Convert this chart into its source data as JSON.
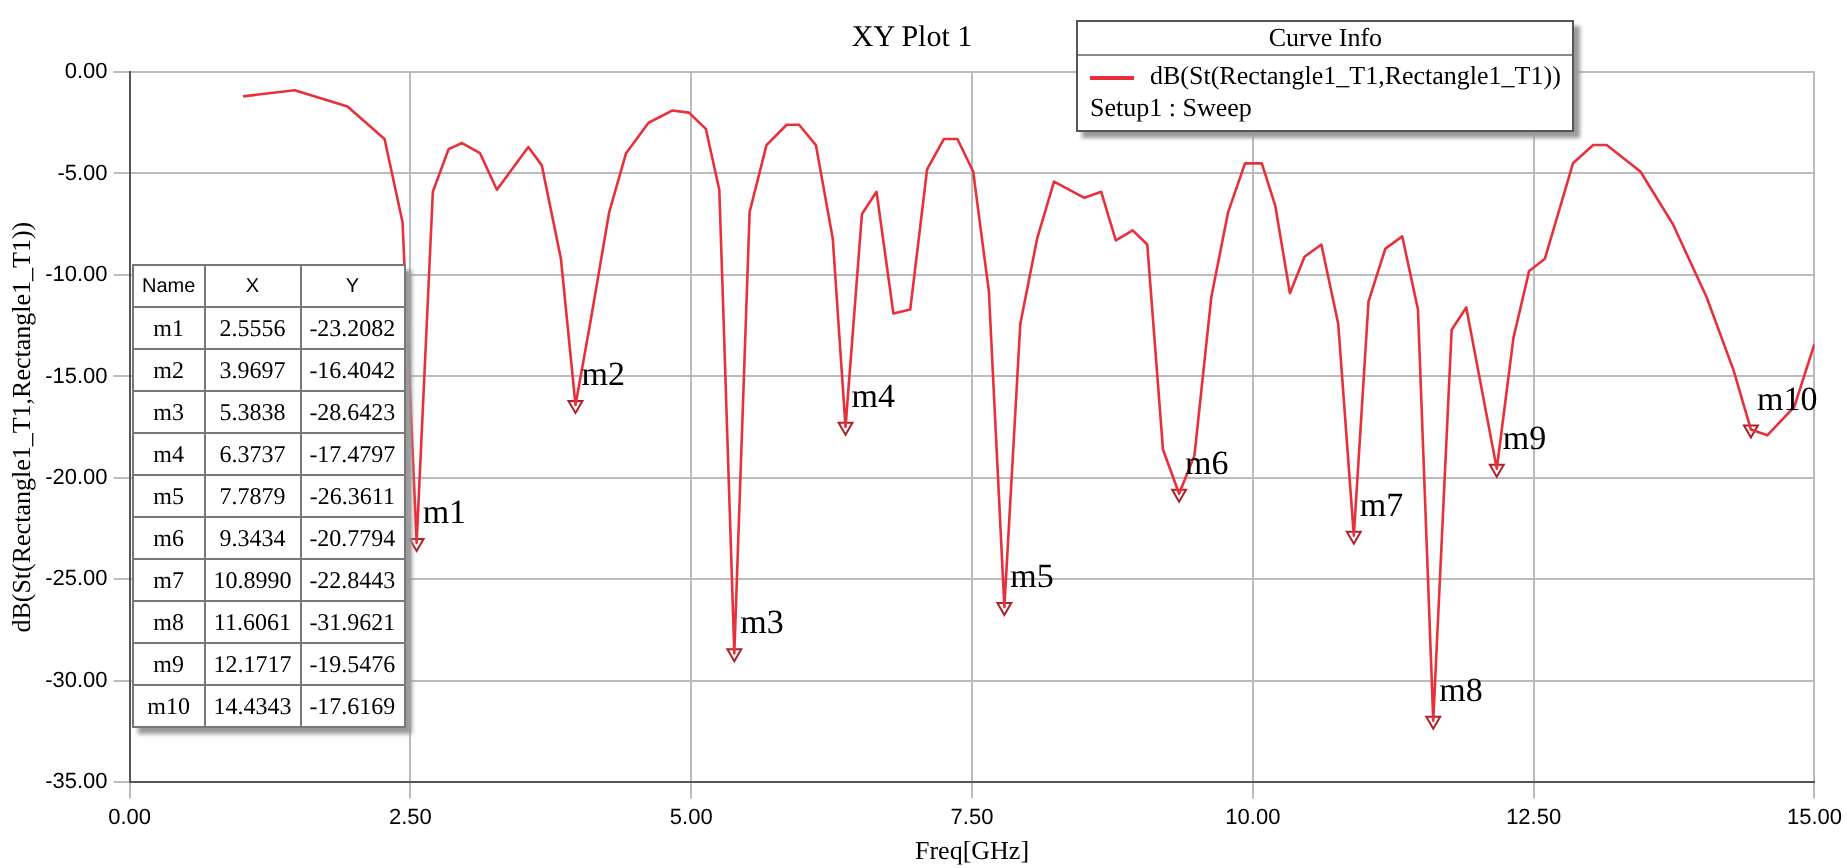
{
  "chart_data": {
    "type": "line",
    "title": "XY Plot 1",
    "xlabel": "Freq[GHz]",
    "ylabel": "dB(St(Rectangle1_T1,Rectangle1_T1))",
    "legend_title": "Curve Info",
    "annotations": [
      "Setup1 : Sweep",
      "Name",
      "X",
      "Y",
      "m1",
      "2.5556",
      "-23.2082",
      "m2",
      "3.9697",
      "-16.4042",
      "m3",
      "5.3838",
      "-28.6423",
      "m4",
      "6.3737",
      "-17.4797",
      "m5",
      "7.7879",
      "-26.3611",
      "m6",
      "9.3434",
      "-20.7794",
      "m7",
      "10.8990",
      "-22.8443",
      "m8",
      "11.6061",
      "-31.9621",
      "m9",
      "12.1717",
      "-19.5476",
      "m10",
      "14.4343",
      "-17.6169"
    ],
    "xlim": [
      0,
      15
    ],
    "xticks": [
      {
        "value": 0,
        "label": "0.00"
      },
      {
        "value": 2.5,
        "label": "2.50"
      },
      {
        "value": 5,
        "label": "5.00"
      },
      {
        "value": 7.5,
        "label": "7.50"
      },
      {
        "value": 10,
        "label": "10.00"
      },
      {
        "value": 12.5,
        "label": "12.50"
      },
      {
        "value": 15,
        "label": "15.00"
      }
    ],
    "ylim": [
      -35,
      0
    ],
    "yticks": [
      {
        "value": -35,
        "label": "-35.00"
      },
      {
        "value": -30,
        "label": "-30.00"
      },
      {
        "value": -25,
        "label": "-25.00"
      },
      {
        "value": -20,
        "label": "-20.00"
      },
      {
        "value": -15,
        "label": "-15.00"
      },
      {
        "value": -10,
        "label": "-10.00"
      },
      {
        "value": -5,
        "label": "-5.00"
      },
      {
        "value": 0,
        "label": "0.00"
      }
    ],
    "grid": true,
    "legend": "top right",
    "series": [
      {
        "name": "dB(St(Rectangle1_T1,Rectangle1_T1))",
        "color": "#e8303a",
        "marker": "none",
        "line_style": "solid",
        "x": [
          1.01,
          1.47,
          1.94,
          2.27,
          2.43,
          2.5556,
          2.7,
          2.84,
          2.96,
          3.12,
          3.27,
          3.55,
          3.67,
          3.84,
          3.9697,
          4.1,
          4.27,
          4.42,
          4.62,
          4.83,
          4.98,
          5.13,
          5.25,
          5.28,
          5.3838,
          5.52,
          5.67,
          5.85,
          5.96,
          6.11,
          6.26,
          6.3737,
          6.52,
          6.65,
          6.8,
          6.95,
          7.1,
          7.25,
          7.37,
          7.51,
          7.65,
          7.7879,
          7.93,
          8.08,
          8.23,
          8.5,
          8.65,
          8.78,
          8.93,
          9.06,
          9.2,
          9.3434,
          9.48,
          9.63,
          9.78,
          9.93,
          10.08,
          10.2,
          10.33,
          10.46,
          10.61,
          10.76,
          10.899,
          11.03,
          11.18,
          11.33,
          11.47,
          11.6061,
          11.77,
          11.9,
          12.1717,
          12.32,
          12.46,
          12.6,
          12.85,
          13.03,
          13.15,
          13.45,
          13.74,
          14.04,
          14.28,
          14.4343,
          14.58,
          14.82,
          15.0
        ],
        "values": [
          -1.2,
          -0.9,
          -1.7,
          -3.3,
          -7.4,
          -23.2082,
          -5.9,
          -3.8,
          -3.5,
          -4.0,
          -5.8,
          -3.7,
          -4.6,
          -9.2,
          -16.4042,
          -12.4,
          -6.9,
          -4.0,
          -2.5,
          -1.9,
          -2.0,
          -2.8,
          -5.8,
          -10.8,
          -28.6423,
          -6.9,
          -3.6,
          -2.6,
          -2.6,
          -3.6,
          -8.2,
          -17.4797,
          -7.0,
          -5.9,
          -11.9,
          -11.7,
          -4.8,
          -3.3,
          -3.3,
          -4.9,
          -10.8,
          -26.3611,
          -12.4,
          -8.2,
          -5.4,
          -6.2,
          -5.9,
          -8.3,
          -7.8,
          -8.5,
          -18.6,
          -20.7794,
          -18.9,
          -11.1,
          -6.9,
          -4.5,
          -4.5,
          -6.6,
          -10.9,
          -9.1,
          -8.5,
          -12.4,
          -22.8443,
          -11.3,
          -8.7,
          -8.1,
          -11.7,
          -31.9621,
          -12.7,
          -11.6,
          -19.5476,
          -13.1,
          -9.8,
          -9.2,
          -4.5,
          -3.6,
          -3.6,
          -4.9,
          -7.5,
          -11.1,
          -14.7,
          -17.6169,
          -17.9,
          -16.5,
          -13.4
        ]
      },
      {
        "type": "scatter",
        "color": "#b02028",
        "marker": "triangle",
        "x": [
          2.5556,
          3.9697,
          5.3838,
          6.3737,
          7.7879,
          9.3434,
          10.899,
          11.6061,
          12.1717,
          14.4343
        ],
        "values": [
          -23.2082,
          -16.4042,
          -28.6423,
          -17.4797,
          -26.3611,
          -20.7794,
          -22.8443,
          -31.9621,
          -19.5476,
          -17.6169
        ],
        "value_labels": [
          "m1",
          "m2",
          "m3",
          "m4",
          "m5",
          "m6",
          "m7",
          "m8",
          "m9",
          "m10"
        ]
      }
    ]
  }
}
